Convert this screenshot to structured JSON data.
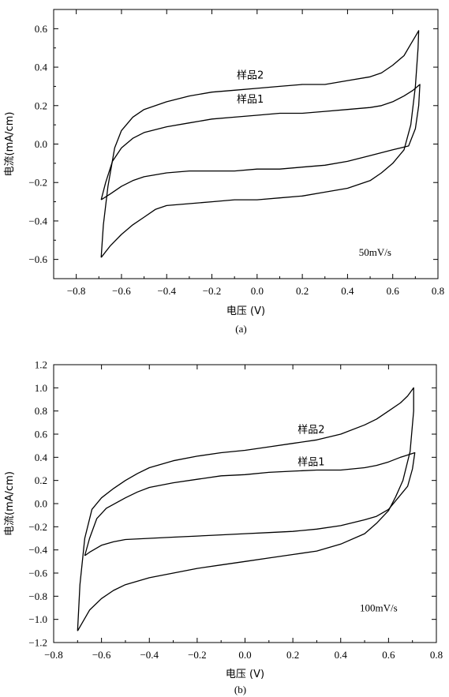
{
  "chart_data": [
    {
      "type": "line",
      "panel_label": "(a)",
      "xlabel": "电压 (V)",
      "ylabel": "电流(mA/cm)",
      "xlim": [
        -0.9,
        0.8
      ],
      "ylim": [
        -0.7,
        0.7
      ],
      "xticks": [
        -0.8,
        -0.6,
        -0.4,
        -0.2,
        0.0,
        0.2,
        0.4,
        0.6,
        0.8
      ],
      "yticks": [
        -0.6,
        -0.4,
        -0.2,
        0.0,
        0.2,
        0.4,
        0.6
      ],
      "xtick_labels": [
        "−0.8",
        "−0.6",
        "−0.4",
        "−0.2",
        "0.0",
        "0.2",
        "0.4",
        "0.6",
        "0.8"
      ],
      "ytick_labels": [
        "−0.6",
        "−0.4",
        "−0.2",
        "0.0",
        "0.2",
        "0.4",
        "0.6"
      ],
      "annotations": [
        {
          "text": "样品2",
          "x": -0.09,
          "y": 0.34
        },
        {
          "text": "样品1",
          "x": -0.09,
          "y": 0.215
        },
        {
          "text": "50mV/s",
          "x": 0.45,
          "y": -0.58
        }
      ],
      "series": [
        {
          "name": "样品2",
          "points": [
            [
              -0.69,
              -0.59
            ],
            [
              -0.68,
              -0.42
            ],
            [
              -0.66,
              -0.22
            ],
            [
              -0.63,
              -0.02
            ],
            [
              -0.6,
              0.07
            ],
            [
              -0.55,
              0.14
            ],
            [
              -0.5,
              0.18
            ],
            [
              -0.4,
              0.22
            ],
            [
              -0.3,
              0.25
            ],
            [
              -0.2,
              0.27
            ],
            [
              -0.1,
              0.28
            ],
            [
              0.0,
              0.29
            ],
            [
              0.1,
              0.3
            ],
            [
              0.2,
              0.31
            ],
            [
              0.3,
              0.31
            ],
            [
              0.4,
              0.33
            ],
            [
              0.5,
              0.35
            ],
            [
              0.55,
              0.37
            ],
            [
              0.6,
              0.41
            ],
            [
              0.65,
              0.46
            ],
            [
              0.68,
              0.52
            ],
            [
              0.7,
              0.56
            ],
            [
              0.715,
              0.59
            ],
            [
              0.712,
              0.5
            ],
            [
              0.7,
              0.3
            ],
            [
              0.68,
              0.1
            ],
            [
              0.65,
              -0.03
            ],
            [
              0.6,
              -0.1
            ],
            [
              0.55,
              -0.15
            ],
            [
              0.5,
              -0.19
            ],
            [
              0.4,
              -0.23
            ],
            [
              0.3,
              -0.25
            ],
            [
              0.2,
              -0.27
            ],
            [
              0.1,
              -0.28
            ],
            [
              0.0,
              -0.29
            ],
            [
              -0.1,
              -0.29
            ],
            [
              -0.2,
              -0.3
            ],
            [
              -0.3,
              -0.31
            ],
            [
              -0.4,
              -0.32
            ],
            [
              -0.45,
              -0.34
            ],
            [
              -0.5,
              -0.38
            ],
            [
              -0.55,
              -0.42
            ],
            [
              -0.6,
              -0.47
            ],
            [
              -0.65,
              -0.53
            ],
            [
              -0.69,
              -0.59
            ]
          ]
        },
        {
          "name": "样品1",
          "points": [
            [
              -0.69,
              -0.29
            ],
            [
              -0.67,
              -0.2
            ],
            [
              -0.64,
              -0.09
            ],
            [
              -0.6,
              -0.02
            ],
            [
              -0.55,
              0.03
            ],
            [
              -0.5,
              0.06
            ],
            [
              -0.4,
              0.09
            ],
            [
              -0.3,
              0.11
            ],
            [
              -0.2,
              0.13
            ],
            [
              -0.1,
              0.14
            ],
            [
              0.0,
              0.15
            ],
            [
              0.1,
              0.16
            ],
            [
              0.2,
              0.16
            ],
            [
              0.3,
              0.17
            ],
            [
              0.4,
              0.18
            ],
            [
              0.5,
              0.19
            ],
            [
              0.55,
              0.2
            ],
            [
              0.6,
              0.22
            ],
            [
              0.65,
              0.25
            ],
            [
              0.69,
              0.28
            ],
            [
              0.72,
              0.31
            ],
            [
              0.715,
              0.2
            ],
            [
              0.7,
              0.08
            ],
            [
              0.67,
              -0.01
            ],
            [
              0.6,
              -0.03
            ],
            [
              0.5,
              -0.06
            ],
            [
              0.4,
              -0.09
            ],
            [
              0.3,
              -0.11
            ],
            [
              0.2,
              -0.12
            ],
            [
              0.1,
              -0.13
            ],
            [
              0.0,
              -0.13
            ],
            [
              -0.1,
              -0.14
            ],
            [
              -0.2,
              -0.14
            ],
            [
              -0.3,
              -0.14
            ],
            [
              -0.4,
              -0.15
            ],
            [
              -0.5,
              -0.17
            ],
            [
              -0.55,
              -0.19
            ],
            [
              -0.6,
              -0.22
            ],
            [
              -0.65,
              -0.26
            ],
            [
              -0.69,
              -0.29
            ]
          ]
        }
      ]
    },
    {
      "type": "line",
      "panel_label": "(b)",
      "xlabel": "电压 (V)",
      "ylabel": "电流(mA/cm)",
      "xlim": [
        -0.8,
        0.8
      ],
      "ylim": [
        -1.2,
        1.2
      ],
      "xticks": [
        -0.8,
        -0.6,
        -0.4,
        -0.2,
        0.0,
        0.2,
        0.4,
        0.6,
        0.8
      ],
      "yticks": [
        -1.2,
        -1.0,
        -0.8,
        -0.6,
        -0.4,
        -0.2,
        0.0,
        0.2,
        0.4,
        0.6,
        0.8,
        1.0,
        1.2
      ],
      "xtick_labels": [
        "−0.8",
        "−0.6",
        "−0.4",
        "−0.2",
        "0.0",
        "0.2",
        "0.4",
        "0.6",
        "0.8"
      ],
      "ytick_labels": [
        "−1.2",
        "−1.0",
        "−0.8",
        "−0.6",
        "−0.4",
        "−0.2",
        "0.0",
        "0.2",
        "0.4",
        "0.6",
        "0.8",
        "1.0",
        "1.2"
      ],
      "annotations": [
        {
          "text": "样品2",
          "x": 0.22,
          "y": 0.61
        },
        {
          "text": "样品1",
          "x": 0.22,
          "y": 0.33
        },
        {
          "text": "100mV/s",
          "x": 0.48,
          "y": -0.93
        }
      ],
      "series": [
        {
          "name": "样品2",
          "points": [
            [
              -0.7,
              -1.1
            ],
            [
              -0.69,
              -0.7
            ],
            [
              -0.67,
              -0.3
            ],
            [
              -0.64,
              -0.05
            ],
            [
              -0.6,
              0.05
            ],
            [
              -0.55,
              0.13
            ],
            [
              -0.5,
              0.2
            ],
            [
              -0.45,
              0.26
            ],
            [
              -0.4,
              0.31
            ],
            [
              -0.3,
              0.37
            ],
            [
              -0.2,
              0.41
            ],
            [
              -0.1,
              0.44
            ],
            [
              0.0,
              0.46
            ],
            [
              0.1,
              0.49
            ],
            [
              0.2,
              0.52
            ],
            [
              0.3,
              0.55
            ],
            [
              0.4,
              0.6
            ],
            [
              0.5,
              0.68
            ],
            [
              0.55,
              0.73
            ],
            [
              0.6,
              0.8
            ],
            [
              0.65,
              0.87
            ],
            [
              0.68,
              0.93
            ],
            [
              0.705,
              1.0
            ],
            [
              0.705,
              0.8
            ],
            [
              0.69,
              0.45
            ],
            [
              0.66,
              0.2
            ],
            [
              0.63,
              0.06
            ],
            [
              0.6,
              -0.06
            ],
            [
              0.55,
              -0.17
            ],
            [
              0.5,
              -0.26
            ],
            [
              0.4,
              -0.35
            ],
            [
              0.3,
              -0.41
            ],
            [
              0.2,
              -0.44
            ],
            [
              0.1,
              -0.47
            ],
            [
              0.0,
              -0.5
            ],
            [
              -0.1,
              -0.53
            ],
            [
              -0.2,
              -0.56
            ],
            [
              -0.3,
              -0.6
            ],
            [
              -0.4,
              -0.64
            ],
            [
              -0.5,
              -0.7
            ],
            [
              -0.55,
              -0.75
            ],
            [
              -0.6,
              -0.82
            ],
            [
              -0.65,
              -0.92
            ],
            [
              -0.7,
              -1.1
            ]
          ]
        },
        {
          "name": "样品1",
          "points": [
            [
              -0.67,
              -0.45
            ],
            [
              -0.65,
              -0.3
            ],
            [
              -0.62,
              -0.13
            ],
            [
              -0.58,
              -0.04
            ],
            [
              -0.5,
              0.05
            ],
            [
              -0.45,
              0.1
            ],
            [
              -0.4,
              0.14
            ],
            [
              -0.3,
              0.18
            ],
            [
              -0.2,
              0.21
            ],
            [
              -0.1,
              0.24
            ],
            [
              0.0,
              0.25
            ],
            [
              0.1,
              0.27
            ],
            [
              0.2,
              0.28
            ],
            [
              0.3,
              0.29
            ],
            [
              0.4,
              0.29
            ],
            [
              0.5,
              0.31
            ],
            [
              0.55,
              0.33
            ],
            [
              0.6,
              0.36
            ],
            [
              0.65,
              0.4
            ],
            [
              0.71,
              0.44
            ],
            [
              0.7,
              0.3
            ],
            [
              0.68,
              0.15
            ],
            [
              0.64,
              0.05
            ],
            [
              0.6,
              -0.05
            ],
            [
              0.55,
              -0.11
            ],
            [
              0.5,
              -0.14
            ],
            [
              0.4,
              -0.19
            ],
            [
              0.3,
              -0.22
            ],
            [
              0.2,
              -0.24
            ],
            [
              0.1,
              -0.25
            ],
            [
              0.0,
              -0.26
            ],
            [
              -0.1,
              -0.27
            ],
            [
              -0.2,
              -0.28
            ],
            [
              -0.3,
              -0.29
            ],
            [
              -0.4,
              -0.3
            ],
            [
              -0.5,
              -0.31
            ],
            [
              -0.55,
              -0.33
            ],
            [
              -0.6,
              -0.36
            ],
            [
              -0.65,
              -0.42
            ],
            [
              -0.67,
              -0.45
            ]
          ]
        }
      ]
    }
  ]
}
